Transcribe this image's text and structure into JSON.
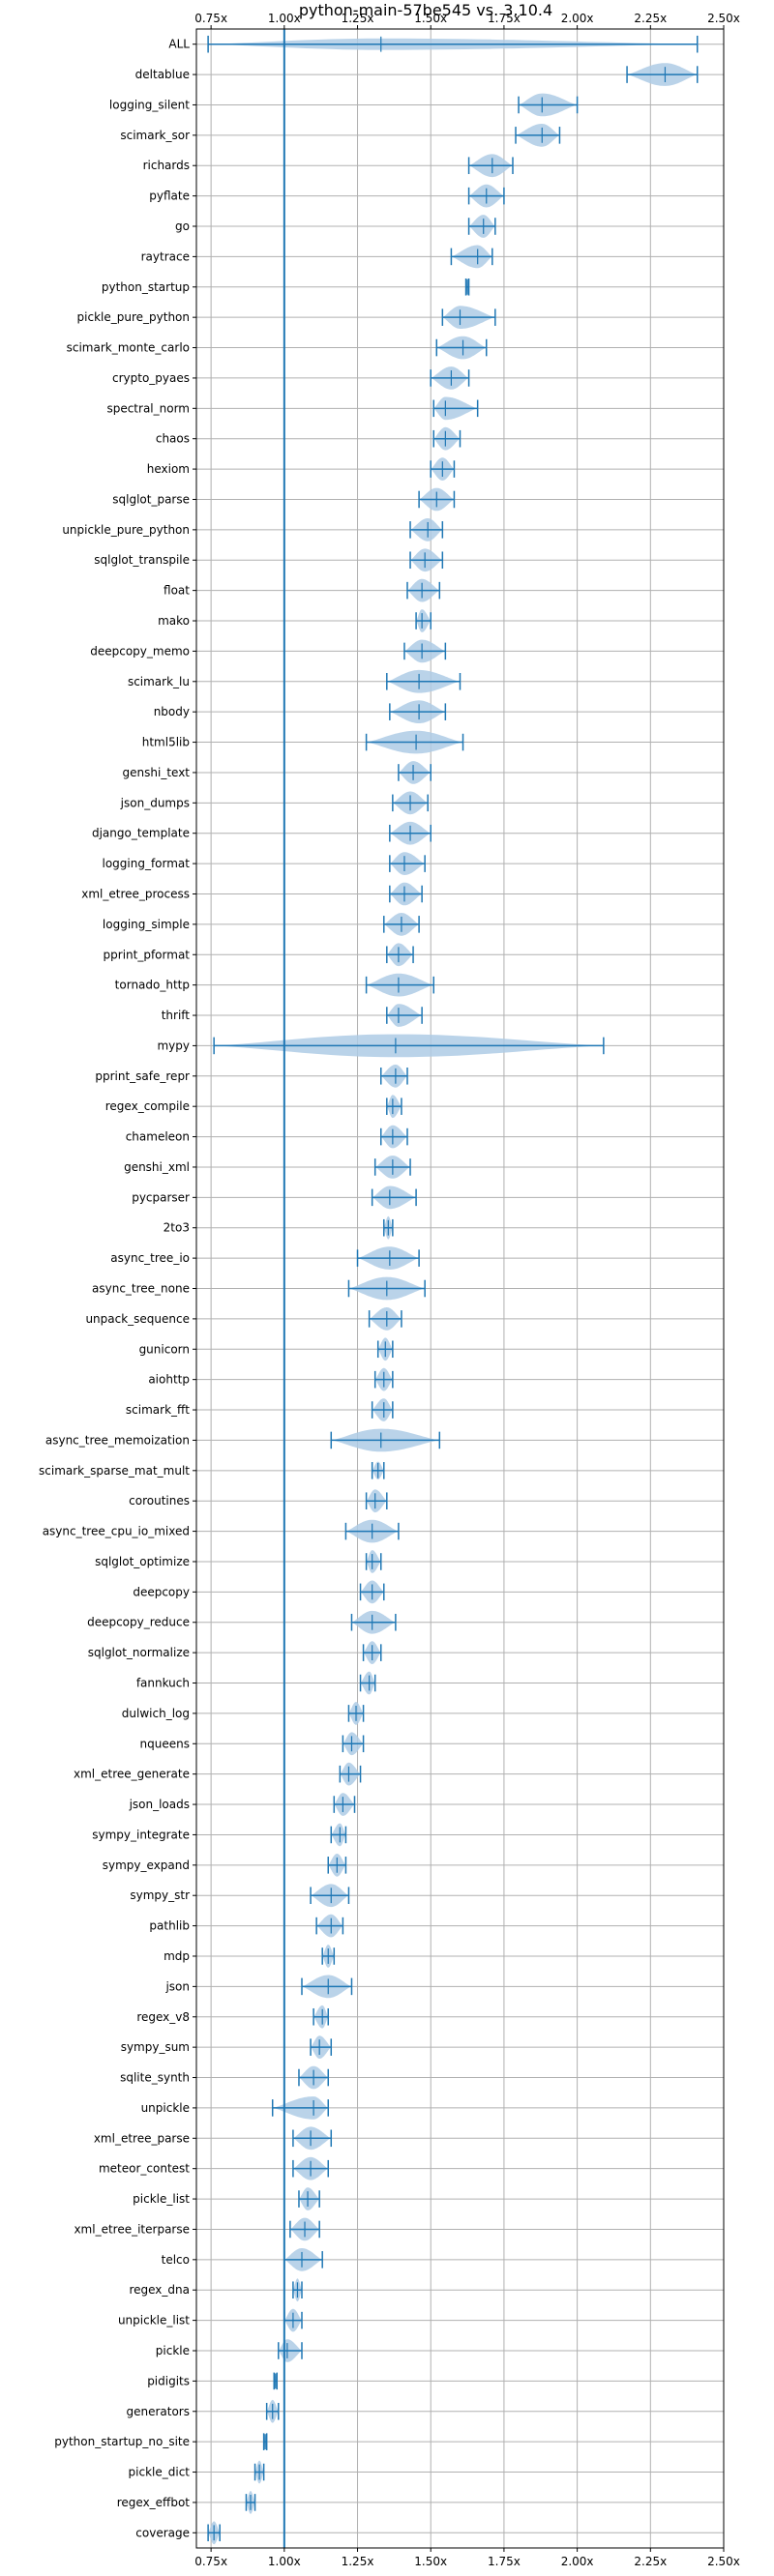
{
  "chart_data": {
    "type": "violin",
    "title": "python-main-57be545 vs. 3.10.4",
    "xlabel": "",
    "ylabel": "",
    "xlim": [
      0.7,
      2.5
    ],
    "xticks": [
      "0.75x",
      "1.00x",
      "1.25x",
      "1.50x",
      "1.75x",
      "2.00x",
      "2.25x",
      "2.50x"
    ],
    "xtick_values": [
      0.75,
      1.0,
      1.25,
      1.5,
      1.75,
      2.0,
      2.25,
      2.5
    ],
    "reference_line": 1.0,
    "grid": true,
    "colors": {
      "violin": "#1f77b4",
      "violin_fill": "#aecbe5",
      "ref_line": "#1f77b4",
      "grid": "#b0b0b0"
    },
    "benchmarks": [
      {
        "name": "ALL",
        "min": 0.74,
        "max": 2.41,
        "median": 1.33,
        "width": 0.45
      },
      {
        "name": "deltablue",
        "min": 2.17,
        "max": 2.41,
        "median": 2.3,
        "width": 0.9
      },
      {
        "name": "logging_silent",
        "min": 1.8,
        "max": 2.0,
        "median": 1.88,
        "width": 0.9
      },
      {
        "name": "scimark_sor",
        "min": 1.79,
        "max": 1.94,
        "median": 1.88,
        "width": 0.9
      },
      {
        "name": "richards",
        "min": 1.63,
        "max": 1.78,
        "median": 1.71,
        "width": 0.9
      },
      {
        "name": "pyflate",
        "min": 1.63,
        "max": 1.75,
        "median": 1.69,
        "width": 0.9
      },
      {
        "name": "go",
        "min": 1.63,
        "max": 1.72,
        "median": 1.68,
        "width": 0.9
      },
      {
        "name": "raytrace",
        "min": 1.57,
        "max": 1.71,
        "median": 1.66,
        "width": 0.9
      },
      {
        "name": "python_startup",
        "min": 1.62,
        "max": 1.63,
        "median": 1.625,
        "width": 0.7
      },
      {
        "name": "pickle_pure_python",
        "min": 1.54,
        "max": 1.72,
        "median": 1.6,
        "width": 0.9
      },
      {
        "name": "scimark_monte_carlo",
        "min": 1.52,
        "max": 1.69,
        "median": 1.61,
        "width": 0.9
      },
      {
        "name": "crypto_pyaes",
        "min": 1.5,
        "max": 1.63,
        "median": 1.57,
        "width": 0.9
      },
      {
        "name": "spectral_norm",
        "min": 1.51,
        "max": 1.66,
        "median": 1.55,
        "width": 0.9
      },
      {
        "name": "chaos",
        "min": 1.51,
        "max": 1.6,
        "median": 1.55,
        "width": 0.9
      },
      {
        "name": "hexiom",
        "min": 1.5,
        "max": 1.58,
        "median": 1.54,
        "width": 0.9
      },
      {
        "name": "sqlglot_parse",
        "min": 1.46,
        "max": 1.58,
        "median": 1.52,
        "width": 0.9
      },
      {
        "name": "unpickle_pure_python",
        "min": 1.43,
        "max": 1.54,
        "median": 1.49,
        "width": 0.9
      },
      {
        "name": "sqlglot_transpile",
        "min": 1.43,
        "max": 1.54,
        "median": 1.48,
        "width": 0.9
      },
      {
        "name": "float",
        "min": 1.42,
        "max": 1.53,
        "median": 1.47,
        "width": 0.9
      },
      {
        "name": "mako",
        "min": 1.45,
        "max": 1.5,
        "median": 1.47,
        "width": 0.9
      },
      {
        "name": "deepcopy_memo",
        "min": 1.41,
        "max": 1.55,
        "median": 1.47,
        "width": 0.9
      },
      {
        "name": "scimark_lu",
        "min": 1.35,
        "max": 1.6,
        "median": 1.46,
        "width": 0.9
      },
      {
        "name": "nbody",
        "min": 1.36,
        "max": 1.55,
        "median": 1.46,
        "width": 0.9
      },
      {
        "name": "html5lib",
        "min": 1.28,
        "max": 1.61,
        "median": 1.45,
        "width": 0.9
      },
      {
        "name": "genshi_text",
        "min": 1.39,
        "max": 1.5,
        "median": 1.44,
        "width": 0.9
      },
      {
        "name": "json_dumps",
        "min": 1.37,
        "max": 1.49,
        "median": 1.43,
        "width": 0.9
      },
      {
        "name": "django_template",
        "min": 1.36,
        "max": 1.5,
        "median": 1.43,
        "width": 0.9
      },
      {
        "name": "logging_format",
        "min": 1.36,
        "max": 1.48,
        "median": 1.41,
        "width": 0.9
      },
      {
        "name": "xml_etree_process",
        "min": 1.36,
        "max": 1.47,
        "median": 1.41,
        "width": 0.9
      },
      {
        "name": "logging_simple",
        "min": 1.34,
        "max": 1.46,
        "median": 1.4,
        "width": 0.9
      },
      {
        "name": "pprint_pformat",
        "min": 1.35,
        "max": 1.44,
        "median": 1.39,
        "width": 0.9
      },
      {
        "name": "tornado_http",
        "min": 1.28,
        "max": 1.51,
        "median": 1.39,
        "width": 0.9
      },
      {
        "name": "thrift",
        "min": 1.35,
        "max": 1.47,
        "median": 1.39,
        "width": 0.9
      },
      {
        "name": "mypy",
        "min": 0.76,
        "max": 2.09,
        "median": 1.38,
        "width": 0.9
      },
      {
        "name": "pprint_safe_repr",
        "min": 1.33,
        "max": 1.42,
        "median": 1.38,
        "width": 0.9
      },
      {
        "name": "regex_compile",
        "min": 1.35,
        "max": 1.4,
        "median": 1.37,
        "width": 0.9
      },
      {
        "name": "chameleon",
        "min": 1.33,
        "max": 1.42,
        "median": 1.37,
        "width": 0.9
      },
      {
        "name": "genshi_xml",
        "min": 1.31,
        "max": 1.43,
        "median": 1.37,
        "width": 0.9
      },
      {
        "name": "pycparser",
        "min": 1.3,
        "max": 1.45,
        "median": 1.36,
        "width": 0.9
      },
      {
        "name": "2to3",
        "min": 1.34,
        "max": 1.37,
        "median": 1.355,
        "width": 0.9
      },
      {
        "name": "async_tree_io",
        "min": 1.25,
        "max": 1.46,
        "median": 1.36,
        "width": 0.9
      },
      {
        "name": "async_tree_none",
        "min": 1.22,
        "max": 1.48,
        "median": 1.35,
        "width": 0.9
      },
      {
        "name": "unpack_sequence",
        "min": 1.29,
        "max": 1.4,
        "median": 1.35,
        "width": 0.9
      },
      {
        "name": "gunicorn",
        "min": 1.32,
        "max": 1.37,
        "median": 1.345,
        "width": 0.9
      },
      {
        "name": "aiohttp",
        "min": 1.31,
        "max": 1.37,
        "median": 1.34,
        "width": 0.9
      },
      {
        "name": "scimark_fft",
        "min": 1.3,
        "max": 1.37,
        "median": 1.34,
        "width": 0.9
      },
      {
        "name": "async_tree_memoization",
        "min": 1.16,
        "max": 1.53,
        "median": 1.33,
        "width": 0.9
      },
      {
        "name": "scimark_sparse_mat_mult",
        "min": 1.3,
        "max": 1.34,
        "median": 1.32,
        "width": 0.7
      },
      {
        "name": "coroutines",
        "min": 1.28,
        "max": 1.35,
        "median": 1.31,
        "width": 0.9
      },
      {
        "name": "async_tree_cpu_io_mixed",
        "min": 1.21,
        "max": 1.39,
        "median": 1.3,
        "width": 0.9
      },
      {
        "name": "sqlglot_optimize",
        "min": 1.28,
        "max": 1.33,
        "median": 1.3,
        "width": 0.9
      },
      {
        "name": "deepcopy",
        "min": 1.26,
        "max": 1.34,
        "median": 1.3,
        "width": 0.9
      },
      {
        "name": "deepcopy_reduce",
        "min": 1.23,
        "max": 1.38,
        "median": 1.3,
        "width": 0.9
      },
      {
        "name": "sqlglot_normalize",
        "min": 1.27,
        "max": 1.33,
        "median": 1.3,
        "width": 0.9
      },
      {
        "name": "fannkuch",
        "min": 1.26,
        "max": 1.31,
        "median": 1.29,
        "width": 0.9
      },
      {
        "name": "dulwich_log",
        "min": 1.22,
        "max": 1.27,
        "median": 1.245,
        "width": 0.9
      },
      {
        "name": "nqueens",
        "min": 1.2,
        "max": 1.27,
        "median": 1.23,
        "width": 0.9
      },
      {
        "name": "xml_etree_generate",
        "min": 1.19,
        "max": 1.26,
        "median": 1.22,
        "width": 0.9
      },
      {
        "name": "json_loads",
        "min": 1.17,
        "max": 1.24,
        "median": 1.2,
        "width": 0.9
      },
      {
        "name": "sympy_integrate",
        "min": 1.16,
        "max": 1.21,
        "median": 1.19,
        "width": 0.9
      },
      {
        "name": "sympy_expand",
        "min": 1.15,
        "max": 1.21,
        "median": 1.18,
        "width": 0.9
      },
      {
        "name": "sympy_str",
        "min": 1.09,
        "max": 1.22,
        "median": 1.16,
        "width": 0.9
      },
      {
        "name": "pathlib",
        "min": 1.11,
        "max": 1.2,
        "median": 1.16,
        "width": 0.9
      },
      {
        "name": "mdp",
        "min": 1.13,
        "max": 1.17,
        "median": 1.15,
        "width": 0.9
      },
      {
        "name": "json",
        "min": 1.06,
        "max": 1.23,
        "median": 1.15,
        "width": 0.9
      },
      {
        "name": "regex_v8",
        "min": 1.1,
        "max": 1.15,
        "median": 1.13,
        "width": 0.9
      },
      {
        "name": "sympy_sum",
        "min": 1.09,
        "max": 1.16,
        "median": 1.12,
        "width": 0.9
      },
      {
        "name": "sqlite_synth",
        "min": 1.05,
        "max": 1.15,
        "median": 1.1,
        "width": 0.9
      },
      {
        "name": "unpickle",
        "min": 0.96,
        "max": 1.15,
        "median": 1.1,
        "width": 0.9
      },
      {
        "name": "xml_etree_parse",
        "min": 1.03,
        "max": 1.16,
        "median": 1.09,
        "width": 0.9
      },
      {
        "name": "meteor_contest",
        "min": 1.03,
        "max": 1.15,
        "median": 1.09,
        "width": 0.9
      },
      {
        "name": "pickle_list",
        "min": 1.05,
        "max": 1.12,
        "median": 1.08,
        "width": 0.9
      },
      {
        "name": "xml_etree_iterparse",
        "min": 1.02,
        "max": 1.12,
        "median": 1.07,
        "width": 0.9
      },
      {
        "name": "telco",
        "min": 1.0,
        "max": 1.13,
        "median": 1.06,
        "width": 0.9
      },
      {
        "name": "regex_dna",
        "min": 1.03,
        "max": 1.06,
        "median": 1.045,
        "width": 0.9
      },
      {
        "name": "unpickle_list",
        "min": 1.0,
        "max": 1.06,
        "median": 1.03,
        "width": 0.9
      },
      {
        "name": "pickle",
        "min": 0.98,
        "max": 1.06,
        "median": 1.01,
        "width": 0.9
      },
      {
        "name": "pidigits",
        "min": 0.965,
        "max": 0.975,
        "median": 0.97,
        "width": 0.5
      },
      {
        "name": "generators",
        "min": 0.94,
        "max": 0.98,
        "median": 0.96,
        "width": 0.9
      },
      {
        "name": "python_startup_no_site",
        "min": 0.93,
        "max": 0.94,
        "median": 0.935,
        "width": 0.5
      },
      {
        "name": "pickle_dict",
        "min": 0.9,
        "max": 0.93,
        "median": 0.915,
        "width": 0.9
      },
      {
        "name": "regex_effbot",
        "min": 0.87,
        "max": 0.9,
        "median": 0.885,
        "width": 0.9
      },
      {
        "name": "coverage",
        "min": 0.74,
        "max": 0.78,
        "median": 0.76,
        "width": 0.9
      }
    ]
  }
}
